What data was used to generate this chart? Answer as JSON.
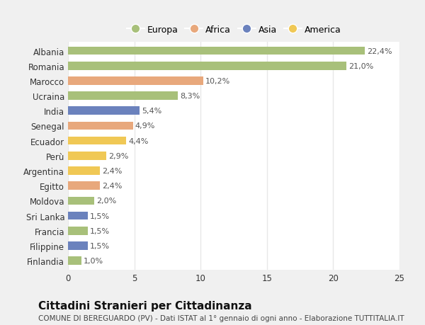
{
  "countries": [
    "Albania",
    "Romania",
    "Marocco",
    "Ucraina",
    "India",
    "Senegal",
    "Ecuador",
    "Perù",
    "Argentina",
    "Egitto",
    "Moldova",
    "Sri Lanka",
    "Francia",
    "Filippine",
    "Finlandia"
  ],
  "values": [
    22.4,
    21.0,
    10.2,
    8.3,
    5.4,
    4.9,
    4.4,
    2.9,
    2.4,
    2.4,
    2.0,
    1.5,
    1.5,
    1.5,
    1.0
  ],
  "labels": [
    "22,4%",
    "21,0%",
    "10,2%",
    "8,3%",
    "5,4%",
    "4,9%",
    "4,4%",
    "2,9%",
    "2,4%",
    "2,4%",
    "2,0%",
    "1,5%",
    "1,5%",
    "1,5%",
    "1,0%"
  ],
  "continents": [
    "Europa",
    "Europa",
    "Africa",
    "Europa",
    "Asia",
    "Africa",
    "America",
    "America",
    "America",
    "Africa",
    "Europa",
    "Asia",
    "Europa",
    "Asia",
    "Europa"
  ],
  "colors": {
    "Europa": "#a8c07a",
    "Africa": "#e8a87c",
    "Asia": "#6b82bd",
    "America": "#f0c855"
  },
  "legend_order": [
    "Europa",
    "Africa",
    "Asia",
    "America"
  ],
  "fig_bg_color": "#f0f0f0",
  "plot_bg_color": "#ffffff",
  "grid_color": "#e8e8e8",
  "xlim": [
    0,
    25
  ],
  "xticks": [
    0,
    5,
    10,
    15,
    20,
    25
  ],
  "title": "Cittadini Stranieri per Cittadinanza",
  "subtitle": "COMUNE DI BEREGUARDO (PV) - Dati ISTAT al 1° gennaio di ogni anno - Elaborazione TUTTITALIA.IT",
  "title_fontsize": 11,
  "subtitle_fontsize": 7.5,
  "label_fontsize": 8,
  "tick_fontsize": 8.5,
  "legend_fontsize": 9
}
